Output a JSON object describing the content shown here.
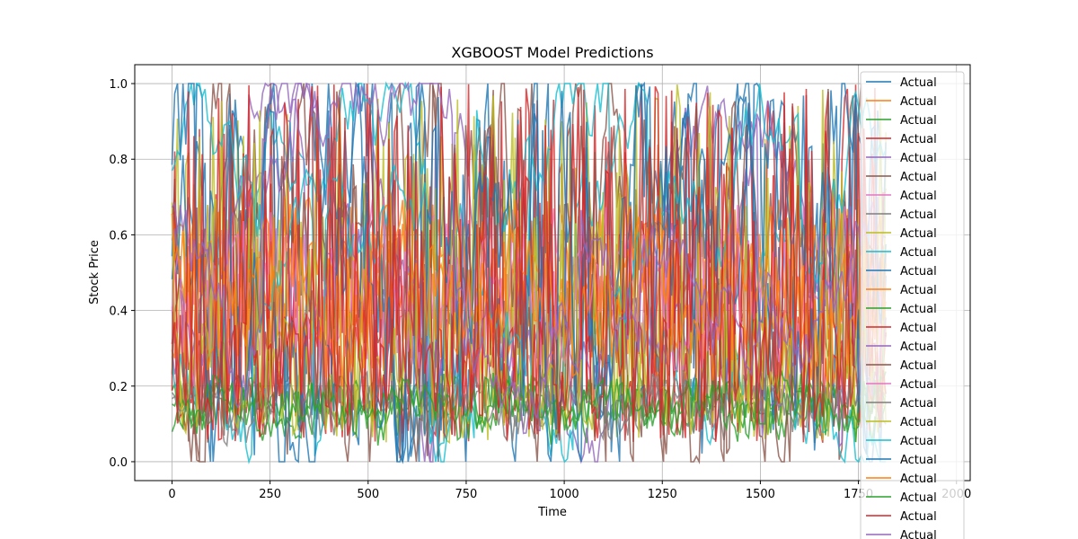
{
  "chart_data": {
    "type": "line",
    "title": "XGBOOST Model Predictions",
    "xlabel": "Time",
    "ylabel": "Stock Price",
    "xlim": [
      -95,
      2035
    ],
    "ylim": [
      -0.05,
      1.05
    ],
    "xticks": [
      0,
      250,
      500,
      750,
      1000,
      1250,
      1500,
      1750,
      2000
    ],
    "yticks": [
      0.0,
      0.2,
      0.4,
      0.6,
      0.8,
      1.0
    ],
    "xtick_labels": [
      "0",
      "250",
      "500",
      "750",
      "1000",
      "1250",
      "1500",
      "1750",
      "2000"
    ],
    "ytick_labels": [
      "0.0",
      "0.2",
      "0.4",
      "0.6",
      "0.8",
      "1.0"
    ],
    "grid": true,
    "legend_position": "right, overflowing below the plot",
    "colors": [
      "#1f77b4",
      "#ff7f0e",
      "#2ca02c",
      "#d62728",
      "#9467bd",
      "#8c564b",
      "#e377c2",
      "#7f7f7f",
      "#bcbd22",
      "#17becf"
    ],
    "series_x_range": [
      0,
      1820
    ],
    "series": [
      {
        "name": "Actual",
        "color": "#1f77b4"
      },
      {
        "name": "Actual",
        "color": "#ff7f0e"
      },
      {
        "name": "Actual",
        "color": "#2ca02c"
      },
      {
        "name": "Actual",
        "color": "#d62728"
      },
      {
        "name": "Actual",
        "color": "#9467bd"
      },
      {
        "name": "Actual",
        "color": "#8c564b"
      },
      {
        "name": "Actual",
        "color": "#e377c2"
      },
      {
        "name": "Actual",
        "color": "#7f7f7f"
      },
      {
        "name": "Actual",
        "color": "#bcbd22"
      },
      {
        "name": "Actual",
        "color": "#17becf"
      },
      {
        "name": "Actual",
        "color": "#1f77b4"
      },
      {
        "name": "Actual",
        "color": "#ff7f0e"
      },
      {
        "name": "Actual",
        "color": "#2ca02c"
      },
      {
        "name": "Actual",
        "color": "#d62728"
      },
      {
        "name": "Actual",
        "color": "#9467bd"
      },
      {
        "name": "Actual",
        "color": "#8c564b"
      },
      {
        "name": "Actual",
        "color": "#e377c2"
      },
      {
        "name": "Actual",
        "color": "#7f7f7f"
      },
      {
        "name": "Actual",
        "color": "#bcbd22"
      },
      {
        "name": "Actual",
        "color": "#17becf"
      },
      {
        "name": "Actual",
        "color": "#1f77b4"
      },
      {
        "name": "Actual",
        "color": "#ff7f0e"
      },
      {
        "name": "Actual",
        "color": "#2ca02c"
      },
      {
        "name": "Actual",
        "color": "#d62728"
      },
      {
        "name": "Actual",
        "color": "#9467bd"
      }
    ]
  }
}
